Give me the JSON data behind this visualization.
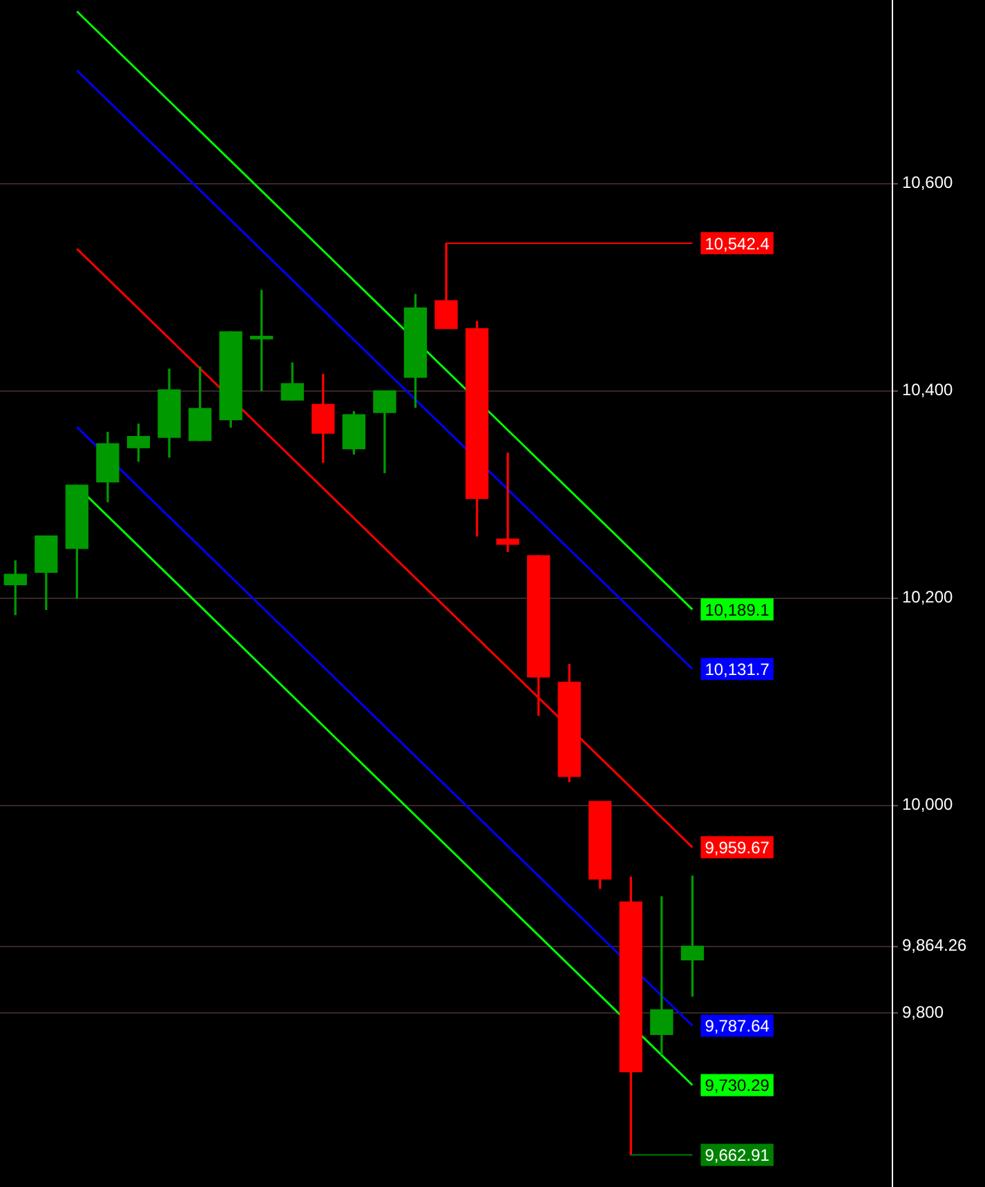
{
  "chart_data": {
    "type": "candlestick",
    "categories": [
      null,
      null,
      null,
      null,
      null,
      null,
      null,
      null,
      null,
      null,
      null,
      null,
      null,
      null,
      null,
      null,
      null,
      null,
      null,
      null,
      null,
      null,
      null,
      null,
      null,
      null,
      null,
      null,
      null
    ],
    "ohlc": [
      [
        10213,
        10236,
        10184,
        10223
      ],
      [
        10225,
        10260,
        10189,
        10260
      ],
      [
        10248,
        10309,
        10200,
        10309
      ],
      [
        10312,
        10360,
        10293,
        10349
      ],
      [
        10345,
        10368,
        10332,
        10356
      ],
      [
        10355,
        10421,
        10336,
        10401
      ],
      [
        10352,
        10423,
        10352,
        10383
      ],
      [
        10372,
        10457,
        10365,
        10457
      ],
      [
        10450,
        10497,
        10400,
        10451
      ],
      [
        10391,
        10427,
        10391,
        10407
      ],
      [
        10387,
        10416,
        10331,
        10359
      ],
      [
        10344,
        10380,
        10339,
        10377
      ],
      [
        10379,
        10400,
        10321,
        10400
      ],
      [
        10413,
        10493,
        10384,
        10480
      ],
      [
        10487,
        10542.4,
        10460,
        10460
      ],
      [
        10460,
        10467,
        10260,
        10296
      ],
      [
        10257,
        10340,
        10245,
        10252
      ],
      [
        10241,
        10241,
        10087,
        10124
      ],
      [
        10119,
        10136,
        10023,
        10028
      ],
      [
        10004,
        10004,
        9920,
        9929
      ],
      [
        9907,
        9931,
        9662.91,
        9743
      ],
      [
        9779,
        9912,
        9760,
        9803
      ],
      [
        9851,
        9932,
        9816,
        9864.26
      ],
      null,
      null,
      null,
      null,
      null,
      null
    ],
    "colors": [
      "#009900",
      "#009900",
      "#009900",
      "#009900",
      "#009900",
      "#009900",
      "#009900",
      "#009900",
      "#009900",
      "#009900",
      "#ff0000",
      "#009900",
      "#009900",
      "#009900",
      "#ff0000",
      "#ff0000",
      "#ff0000",
      "#ff0000",
      "#ff0000",
      "#ff0000",
      "#ff0000",
      "#009900",
      "#009900",
      null,
      null,
      null,
      null,
      null,
      null
    ],
    "ylim": [
      9632,
      10777
    ],
    "yticks": [
      {
        "value": 9800,
        "label": "9,800"
      },
      {
        "value": 9864.26,
        "label": "9,864.26"
      },
      {
        "value": 10000,
        "label": "10,000"
      },
      {
        "value": 10200,
        "label": "10,200"
      },
      {
        "value": 10400,
        "label": "10,400"
      },
      {
        "value": 10600,
        "label": "10,600"
      }
    ],
    "grid": "y",
    "legend": false,
    "tick_labels": "y",
    "marker": "none",
    "series": [
      {
        "type": "line",
        "color": "#00ff00",
        "values": [
          null,
          null,
          10766,
          null,
          null,
          null,
          null,
          null,
          null,
          null,
          null,
          null,
          null,
          null,
          null,
          null,
          null,
          null,
          null,
          null,
          null,
          null,
          10189.1,
          null,
          null,
          null,
          null,
          null,
          null
        ],
        "value_labels": [
          null,
          null,
          null,
          null,
          null,
          null,
          null,
          null,
          null,
          null,
          null,
          null,
          null,
          null,
          null,
          null,
          null,
          null,
          null,
          null,
          null,
          null,
          "10,189.1",
          null,
          null,
          null,
          null,
          null,
          null
        ]
      },
      {
        "type": "line",
        "color": "#0000ff",
        "values": [
          null,
          null,
          10709,
          null,
          null,
          null,
          null,
          null,
          null,
          null,
          null,
          null,
          null,
          null,
          null,
          null,
          null,
          null,
          null,
          null,
          null,
          null,
          10131.7,
          null,
          null,
          null,
          null,
          null,
          null
        ],
        "value_labels": [
          null,
          null,
          null,
          null,
          null,
          null,
          null,
          null,
          null,
          null,
          null,
          null,
          null,
          null,
          null,
          null,
          null,
          null,
          null,
          null,
          null,
          null,
          "10,131.7",
          null,
          null,
          null,
          null,
          null,
          null
        ]
      },
      {
        "type": "line",
        "color": "#ff0000",
        "values": [
          null,
          null,
          10537,
          null,
          null,
          null,
          null,
          null,
          null,
          null,
          null,
          null,
          null,
          null,
          null,
          null,
          null,
          null,
          null,
          null,
          null,
          null,
          9959.67,
          null,
          null,
          null,
          null,
          null,
          null
        ],
        "value_labels": [
          null,
          null,
          null,
          null,
          null,
          null,
          null,
          null,
          null,
          null,
          null,
          null,
          null,
          null,
          null,
          null,
          null,
          null,
          null,
          null,
          null,
          null,
          "9,959.67",
          null,
          null,
          null,
          null,
          null,
          null
        ]
      },
      {
        "type": "line",
        "color": "#0000ff",
        "values": [
          null,
          null,
          10365,
          null,
          null,
          null,
          null,
          null,
          null,
          null,
          null,
          null,
          null,
          null,
          null,
          null,
          null,
          null,
          null,
          null,
          null,
          null,
          9787.64,
          null,
          null,
          null,
          null,
          null,
          null
        ],
        "value_labels": [
          null,
          null,
          null,
          null,
          null,
          null,
          null,
          null,
          null,
          null,
          null,
          null,
          null,
          null,
          null,
          null,
          null,
          null,
          null,
          null,
          null,
          null,
          "9,787.64",
          null,
          null,
          null,
          null,
          null,
          null
        ]
      },
      {
        "type": "line",
        "color": "#00ff00",
        "values": [
          null,
          null,
          10308,
          null,
          null,
          null,
          null,
          null,
          null,
          null,
          null,
          null,
          null,
          null,
          null,
          null,
          null,
          null,
          null,
          null,
          null,
          null,
          9730.29,
          null,
          null,
          null,
          null,
          null,
          null
        ],
        "value_labels": [
          null,
          null,
          null,
          null,
          null,
          null,
          null,
          null,
          null,
          null,
          null,
          null,
          null,
          null,
          null,
          null,
          null,
          null,
          null,
          null,
          null,
          null,
          "9,730.29",
          null,
          null,
          null,
          null,
          null,
          null
        ]
      }
    ],
    "ref_lines": [
      {
        "axis": "y",
        "value": 10542.4,
        "label": "10,542.4",
        "color": "#ff0000"
      },
      {
        "axis": "y",
        "value": 9662.91,
        "label": "9,662.91",
        "color": "#008000"
      }
    ]
  }
}
